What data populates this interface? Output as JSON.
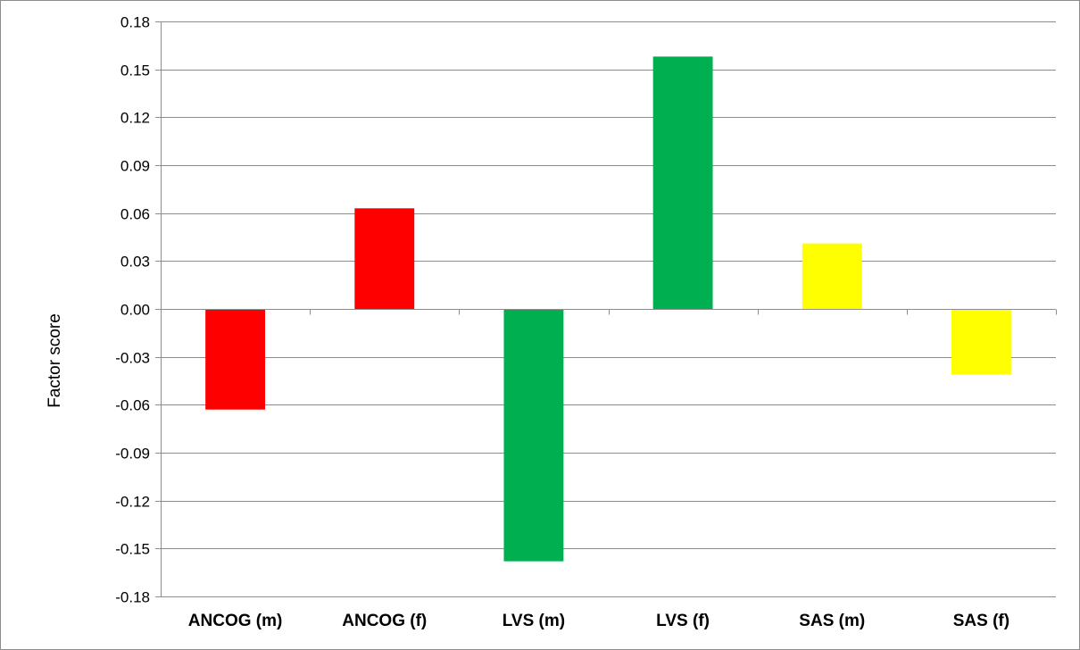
{
  "chart_data": {
    "type": "bar",
    "title": "",
    "xlabel": "",
    "ylabel": "Factor score",
    "ylim": [
      -0.18,
      0.18
    ],
    "yticks": [
      "0.18",
      "0.15",
      "0.12",
      "0.09",
      "0.06",
      "0.03",
      "0.00",
      "-0.03",
      "-0.06",
      "-0.09",
      "-0.12",
      "-0.15",
      "-0.18"
    ],
    "grid": true,
    "legend": "none",
    "categories": [
      "ANCOG (m)",
      "ANCOG (f)",
      "LVS (m)",
      "LVS (f)",
      "SAS (m)",
      "SAS (f)"
    ],
    "values": [
      -0.063,
      0.063,
      -0.158,
      0.158,
      0.041,
      -0.041
    ],
    "bar_colors": [
      "#ff0000",
      "#ff0000",
      "#00b050",
      "#00b050",
      "#ffff00",
      "#ffff00"
    ]
  },
  "colors": {
    "gridline": "#8c8c8c",
    "axis": "#8c8c8c",
    "background": "#ffffff"
  }
}
